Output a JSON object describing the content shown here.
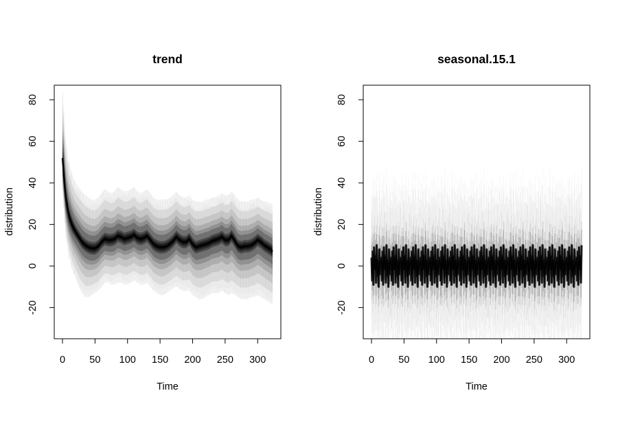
{
  "chart_data": [
    {
      "type": "area",
      "title": "trend",
      "xlabel": "Time",
      "ylabel": "distribution",
      "xlim": [
        0,
        323
      ],
      "ylim": [
        -35,
        87
      ],
      "xticks": [
        0,
        50,
        100,
        150,
        200,
        250,
        300
      ],
      "yticks": [
        -20,
        0,
        20,
        40,
        60,
        80
      ],
      "x_range": [
        0,
        323
      ],
      "color": "#000000",
      "series": [
        {
          "x": [
            0,
            5,
            10,
            15,
            20,
            25,
            30,
            35,
            40,
            45,
            50,
            55,
            60,
            65,
            70,
            75,
            80,
            85,
            90,
            95,
            100,
            105,
            110,
            115,
            120,
            125,
            130,
            135,
            140,
            145,
            150,
            155,
            160,
            165,
            170,
            175,
            180,
            185,
            190,
            195,
            200,
            205,
            210,
            215,
            220,
            225,
            230,
            235,
            240,
            245,
            250,
            255,
            260,
            265,
            270,
            275,
            280,
            285,
            290,
            295,
            300,
            305,
            310,
            315,
            320,
            323
          ],
          "median": [
            52,
            33,
            24,
            19.5,
            16.5,
            14,
            11.5,
            10,
            9,
            8.5,
            8.5,
            9.5,
            11.5,
            13,
            12.5,
            12.5,
            13,
            14.5,
            14,
            13,
            13.5,
            14,
            15,
            13.5,
            13,
            13.5,
            14.5,
            12.5,
            10.5,
            9.5,
            9,
            9,
            9.5,
            10.5,
            12,
            14,
            12.5,
            11.5,
            11.5,
            13,
            10.5,
            9,
            9.5,
            10,
            10.5,
            11,
            12,
            12.5,
            13,
            14,
            12.5,
            12.5,
            14.5,
            12,
            9.5,
            9,
            9.5,
            9.5,
            10,
            11,
            12.5,
            11.5,
            10,
            9,
            8,
            7
          ],
          "q1": [
            45,
            28,
            20,
            16,
            13.5,
            11,
            8.5,
            7,
            6,
            5.5,
            5.5,
            6.5,
            8.5,
            10,
            9.5,
            9.5,
            10,
            11.5,
            11,
            10,
            10.5,
            11,
            12,
            10.5,
            10,
            10.5,
            11.5,
            9.5,
            7.5,
            6.5,
            6,
            6,
            6.5,
            7.5,
            9,
            11,
            9.5,
            8.5,
            8.5,
            10,
            7.5,
            6,
            6.5,
            7,
            7.5,
            8,
            9,
            9.5,
            10,
            11,
            9.5,
            9.5,
            11.5,
            9,
            6.5,
            6,
            6.5,
            6.5,
            7,
            8,
            9.5,
            8.5,
            7,
            6,
            5,
            4
          ],
          "q3": [
            60,
            38,
            28,
            23,
            19.5,
            17,
            14.5,
            13,
            12,
            11.5,
            11.5,
            12.5,
            14.5,
            16,
            15.5,
            15.5,
            16,
            17.5,
            17,
            16,
            16.5,
            17,
            18,
            16.5,
            16,
            16.5,
            17.5,
            15.5,
            13.5,
            12.5,
            12,
            12,
            12.5,
            13.5,
            15,
            17,
            15.5,
            14.5,
            14.5,
            16,
            13.5,
            12,
            12.5,
            13,
            13.5,
            14,
            15,
            15.5,
            16,
            17,
            15.5,
            15.5,
            17.5,
            15,
            12.5,
            12,
            12.5,
            12.5,
            13,
            14,
            15.5,
            14.5,
            13,
            12,
            11,
            10
          ],
          "lo": [
            35,
            14,
            4,
            -2,
            -6,
            -10,
            -13,
            -15,
            -15,
            -14,
            -13,
            -12,
            -10,
            -8,
            -8,
            -9,
            -9,
            -8,
            -8,
            -9,
            -9,
            -8,
            -7,
            -8,
            -9,
            -9,
            -8,
            -10,
            -12,
            -13,
            -14,
            -14,
            -13,
            -12,
            -11,
            -10,
            -11,
            -12,
            -12,
            -12,
            -14,
            -15,
            -16,
            -16,
            -15,
            -14,
            -13,
            -13,
            -13,
            -12,
            -13,
            -14,
            -13,
            -14,
            -15,
            -16,
            -16,
            -16,
            -15,
            -15,
            -14,
            -15,
            -16,
            -17,
            -18,
            -19
          ],
          "hi": [
            85,
            60,
            50,
            44,
            40,
            38,
            36,
            34,
            33,
            32,
            32,
            33,
            35,
            37,
            36,
            35,
            36,
            38,
            37,
            36,
            36,
            37,
            38,
            36,
            35,
            36,
            37,
            35,
            33,
            32,
            32,
            32,
            32,
            33,
            34,
            36,
            34,
            33,
            33,
            34,
            32,
            31,
            31,
            31,
            32,
            32,
            33,
            33,
            34,
            35,
            34,
            34,
            36,
            34,
            32,
            31,
            31,
            31,
            32,
            32,
            33,
            32,
            31,
            31,
            30,
            30
          ]
        }
      ]
    },
    {
      "type": "area",
      "title": "seasonal.15.1",
      "xlabel": "Time",
      "ylabel": "distribution",
      "xlim": [
        0,
        323
      ],
      "ylim": [
        -35,
        87
      ],
      "xticks": [
        0,
        50,
        100,
        150,
        200,
        250,
        300
      ],
      "yticks": [
        -20,
        0,
        20,
        40,
        60,
        80
      ],
      "x_range": [
        0,
        323
      ],
      "color": "#000000",
      "season_period": 15,
      "season_pattern": [
        4,
        -7,
        7,
        -9,
        9,
        -2,
        5,
        -8,
        10,
        -5,
        3,
        -10,
        8,
        -4,
        2
      ],
      "band_halfwidth": {
        "core": 3,
        "inner": 10,
        "outer": 22,
        "extreme": 30
      }
    }
  ]
}
